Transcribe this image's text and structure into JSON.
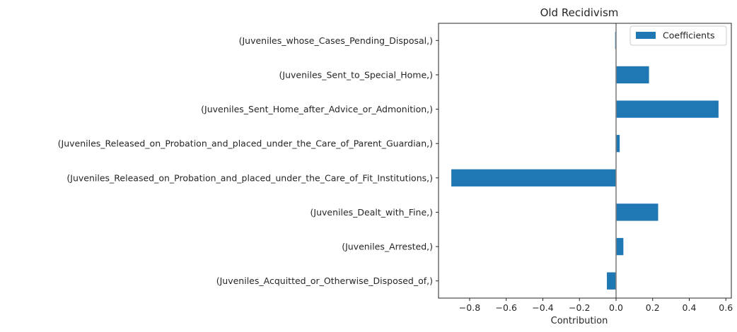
{
  "chart_data": {
    "type": "bar",
    "orientation": "horizontal",
    "title": "Old Recidivism",
    "xlabel": "Contribution",
    "ylabel": "",
    "xlim": [
      -0.97,
      0.63
    ],
    "x_ticks": [
      -0.8,
      -0.6,
      -0.4,
      -0.2,
      0.0,
      0.2,
      0.4,
      0.6
    ],
    "x_tick_labels": [
      "−0.8",
      "−0.6",
      "−0.4",
      "−0.2",
      "0.0",
      "0.2",
      "0.4",
      "0.6"
    ],
    "grid": false,
    "zero_line": true,
    "legend_position": "top-right",
    "categories": [
      "(Juveniles_whose_Cases_Pending_Disposal,)",
      "(Juveniles_Sent_to_Special_Home,)",
      "(Juveniles_Sent_Home_after_Advice_or_Admonition,)",
      "(Juveniles_Released_on_Probation_and_placed_under_the_Care_of_Parent_Guardian,)",
      "(Juveniles_Released_on_Probation_and_placed_under_the_Care_of_Fit_Institutions,)",
      "(Juveniles_Dealt_with_Fine,)",
      "(Juveniles_Arrested,)",
      "(Juveniles_Acquitted_or_Otherwise_Disposed_of,)"
    ],
    "series": [
      {
        "name": "Coefficients",
        "color": "#1f77b4",
        "values": [
          -0.005,
          0.18,
          0.56,
          0.02,
          -0.9,
          0.23,
          0.04,
          -0.05
        ]
      }
    ]
  }
}
